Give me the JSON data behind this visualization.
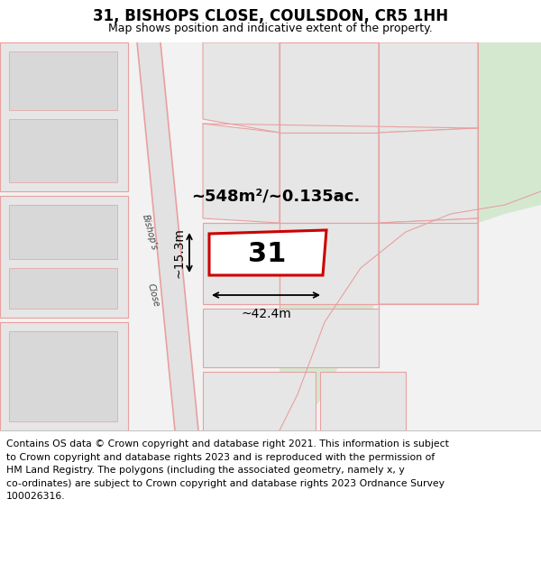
{
  "title": "31, BISHOPS CLOSE, COULSDON, CR5 1HH",
  "subtitle": "Map shows position and indicative extent of the property.",
  "footer": "Contains OS data © Crown copyright and database right 2021. This information is subject\nto Crown copyright and database rights 2023 and is reproduced with the permission of\nHM Land Registry. The polygons (including the associated geometry, namely x, y\nco-ordinates) are subject to Crown copyright and database rights 2023 Ordnance Survey\n100026316.",
  "map_bg": "#f0f0f0",
  "green_area_color": "#d4e8d0",
  "road_strip_color": "#e2e2e2",
  "road_line_color": "#e8a0a0",
  "plot_fill": "#ffffff",
  "plot_border": "#cc0000",
  "parcel_fill": "#e6e6e6",
  "parcel_edge": "#e8a0a0",
  "building_fill": "#d8d8d8",
  "building_edge": "#e8a0a0",
  "label_31": "31",
  "area_label": "~548m²/~0.135ac.",
  "width_label": "~42.4m",
  "height_label": "~15.3m",
  "street_label_1": "Bishop's",
  "street_label_2": "Close",
  "title_fontsize": 12,
  "subtitle_fontsize": 9,
  "footer_fontsize": 7.8,
  "title_color": "#000000",
  "dim_color": "#000000"
}
